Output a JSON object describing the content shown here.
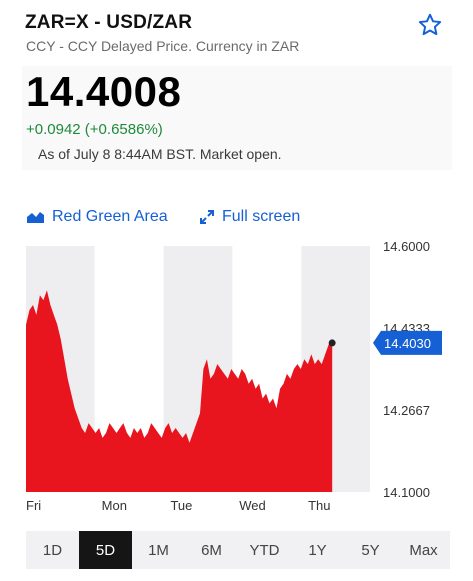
{
  "header": {
    "symbol": "ZAR=X - USD/ZAR",
    "subtitle": "CCY - CCY Delayed Price. Currency in ZAR",
    "star_icon": "star-outline-icon",
    "price": "14.4008",
    "change": "+0.0942 (+0.6586%)",
    "as_of": "As of July 8 8:44AM BST. Market open.",
    "colors": {
      "change": "#1e8a3a",
      "accent": "#1560d4"
    }
  },
  "toolbar": {
    "area_label": "Red Green Area",
    "area_icon": "area-chart-icon",
    "fullscreen_label": "Full screen",
    "fullscreen_icon": "expand-arrows-icon"
  },
  "chart_data": {
    "type": "area",
    "title": "",
    "xlabel": "",
    "ylabel": "",
    "x_ticks": [
      "Fri",
      "Mon",
      "Tue",
      "Wed",
      "Thu"
    ],
    "y_ticks": [
      "14.6000",
      "14.4333",
      "14.2667",
      "14.1000"
    ],
    "ylim": [
      14.1,
      14.6
    ],
    "current_value_label": "14.4030",
    "current_value": 14.403,
    "fill_color": "#e8141e",
    "marker_color": "#1560d4",
    "day_shading": [
      "Fri",
      "Tue",
      "Thu"
    ],
    "series": [
      {
        "values": [
          14.44,
          14.47,
          14.48,
          14.46,
          14.5,
          14.49,
          14.51,
          14.48,
          14.46,
          14.44,
          14.41,
          14.37,
          14.33,
          14.3,
          14.27,
          14.25,
          14.23,
          14.22,
          14.24,
          14.23,
          14.22,
          14.23,
          14.21,
          14.22,
          14.24,
          14.23,
          14.22,
          14.23,
          14.24,
          14.22,
          14.21,
          14.23,
          14.22,
          14.23,
          14.21,
          14.22,
          14.24,
          14.23,
          14.22,
          14.21,
          14.23,
          14.24,
          14.22,
          14.23,
          14.22,
          14.21,
          14.22,
          14.2,
          14.22,
          14.24,
          14.26,
          14.35,
          14.37,
          14.33,
          14.34,
          14.36,
          14.35,
          14.34,
          14.33,
          14.35,
          14.34,
          14.33,
          14.35,
          14.34,
          14.32,
          14.33,
          14.31,
          14.32,
          14.29,
          14.3,
          14.28,
          14.29,
          14.27,
          14.31,
          14.32,
          14.34,
          14.33,
          14.35,
          14.36,
          14.35,
          14.37,
          14.36,
          14.38,
          14.36,
          14.37,
          14.36,
          14.38,
          14.4,
          14.403
        ]
      }
    ]
  },
  "range_tabs": {
    "items": [
      "1D",
      "5D",
      "1M",
      "6M",
      "YTD",
      "1Y",
      "5Y",
      "Max"
    ],
    "active": "5D"
  }
}
